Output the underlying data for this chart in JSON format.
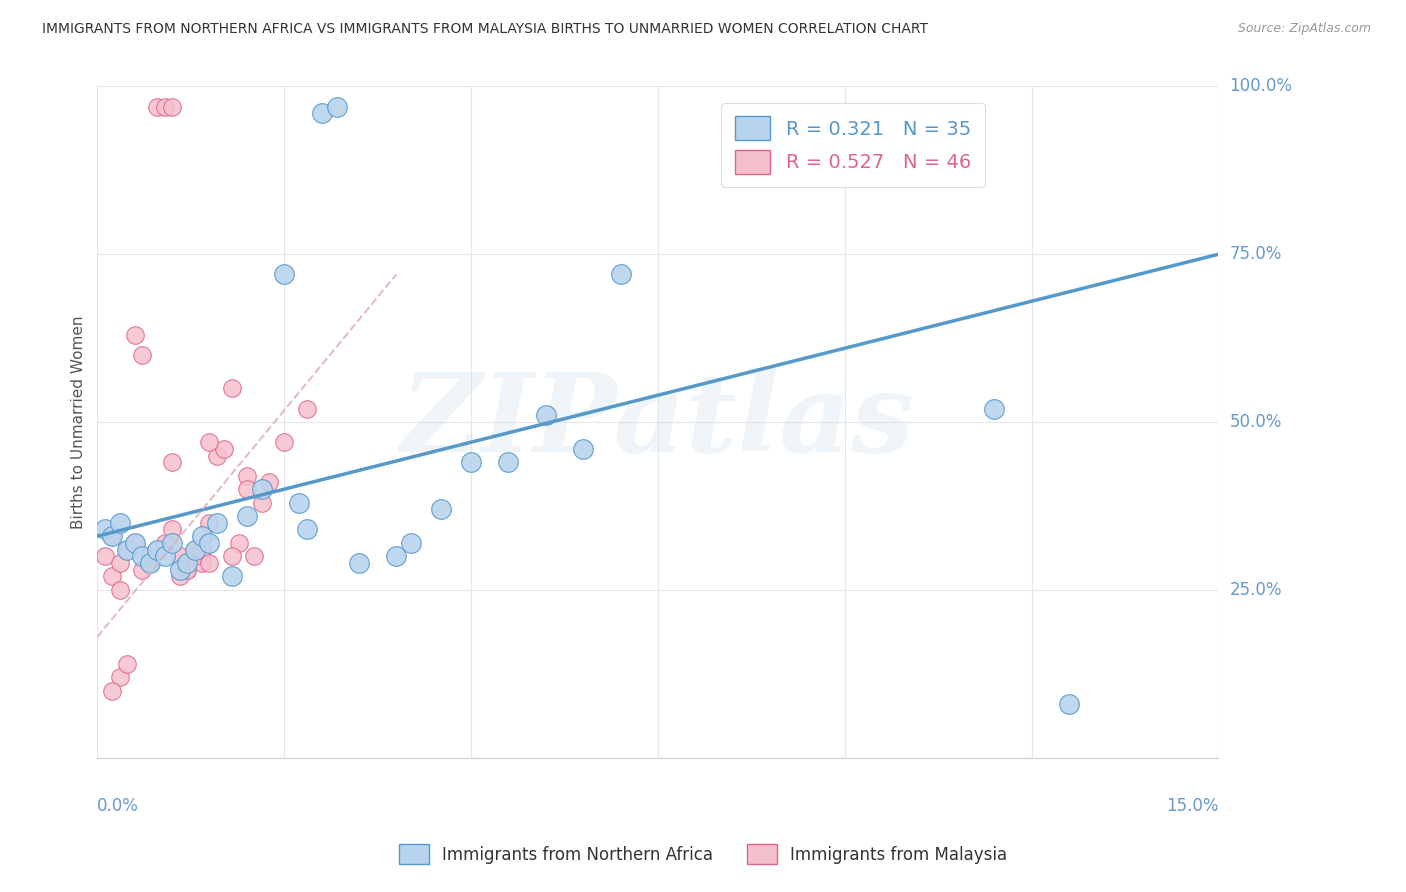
{
  "title": "IMMIGRANTS FROM NORTHERN AFRICA VS IMMIGRANTS FROM MALAYSIA BIRTHS TO UNMARRIED WOMEN CORRELATION CHART",
  "source": "Source: ZipAtlas.com",
  "ylabel": "Births to Unmarried Women",
  "legend_blue_r": "0.321",
  "legend_blue_n": "35",
  "legend_pink_r": "0.527",
  "legend_pink_n": "46",
  "watermark": "ZIPatlas",
  "blue_color": "#b8d4ed",
  "pink_color": "#f5c0ce",
  "blue_line_color": "#5599cc",
  "pink_line_color": "#dd6688",
  "pink_dashed_color": "#ddb0be",
  "background_color": "#ffffff",
  "grid_color": "#e5e5f0",
  "title_color": "#333333",
  "axis_tick_color": "#6699cc",
  "right_tick_color": "#6699cc",
  "ylabel_color": "#555555",
  "x_min": 0.0,
  "x_max": 0.15,
  "y_min": 0.0,
  "y_max": 1.0,
  "blue_line_x0": 0.0,
  "blue_line_y0": 0.33,
  "blue_line_x1": 0.15,
  "blue_line_y1": 0.75,
  "pink_line_x0": 0.0,
  "pink_line_y0": 0.18,
  "pink_line_x1": 0.04,
  "pink_line_y1": 0.72,
  "blue_points_x": [
    0.001,
    0.002,
    0.003,
    0.004,
    0.005,
    0.006,
    0.007,
    0.008,
    0.009,
    0.01,
    0.011,
    0.012,
    0.013,
    0.014,
    0.015,
    0.016,
    0.018,
    0.02,
    0.022,
    0.025,
    0.027,
    0.028,
    0.03,
    0.032,
    0.035,
    0.04,
    0.042,
    0.046,
    0.05,
    0.055,
    0.06,
    0.065,
    0.07,
    0.12,
    0.13
  ],
  "blue_points_y": [
    0.34,
    0.33,
    0.35,
    0.31,
    0.32,
    0.3,
    0.29,
    0.31,
    0.3,
    0.32,
    0.28,
    0.29,
    0.31,
    0.33,
    0.32,
    0.35,
    0.27,
    0.36,
    0.4,
    0.72,
    0.38,
    0.34,
    0.96,
    0.97,
    0.29,
    0.3,
    0.32,
    0.37,
    0.44,
    0.44,
    0.51,
    0.46,
    0.72,
    0.52,
    0.08
  ],
  "pink_points_x": [
    0.001,
    0.002,
    0.003,
    0.004,
    0.005,
    0.006,
    0.007,
    0.008,
    0.009,
    0.01,
    0.011,
    0.012,
    0.013,
    0.014,
    0.015,
    0.016,
    0.017,
    0.018,
    0.019,
    0.02,
    0.021,
    0.022,
    0.023,
    0.006,
    0.007,
    0.008,
    0.009,
    0.01,
    0.011,
    0.012,
    0.013,
    0.014,
    0.015,
    0.002,
    0.003,
    0.004,
    0.005,
    0.01,
    0.015,
    0.018,
    0.02,
    0.025,
    0.028,
    0.003,
    0.002,
    0.004
  ],
  "pink_points_y": [
    0.3,
    0.27,
    0.29,
    0.31,
    0.32,
    0.28,
    0.3,
    0.97,
    0.97,
    0.97,
    0.3,
    0.28,
    0.31,
    0.29,
    0.35,
    0.45,
    0.46,
    0.55,
    0.32,
    0.42,
    0.3,
    0.38,
    0.41,
    0.6,
    0.29,
    0.31,
    0.32,
    0.34,
    0.27,
    0.28,
    0.3,
    0.31,
    0.29,
    0.33,
    0.25,
    0.31,
    0.63,
    0.44,
    0.47,
    0.3,
    0.4,
    0.47,
    0.52,
    0.12,
    0.1,
    0.14
  ]
}
